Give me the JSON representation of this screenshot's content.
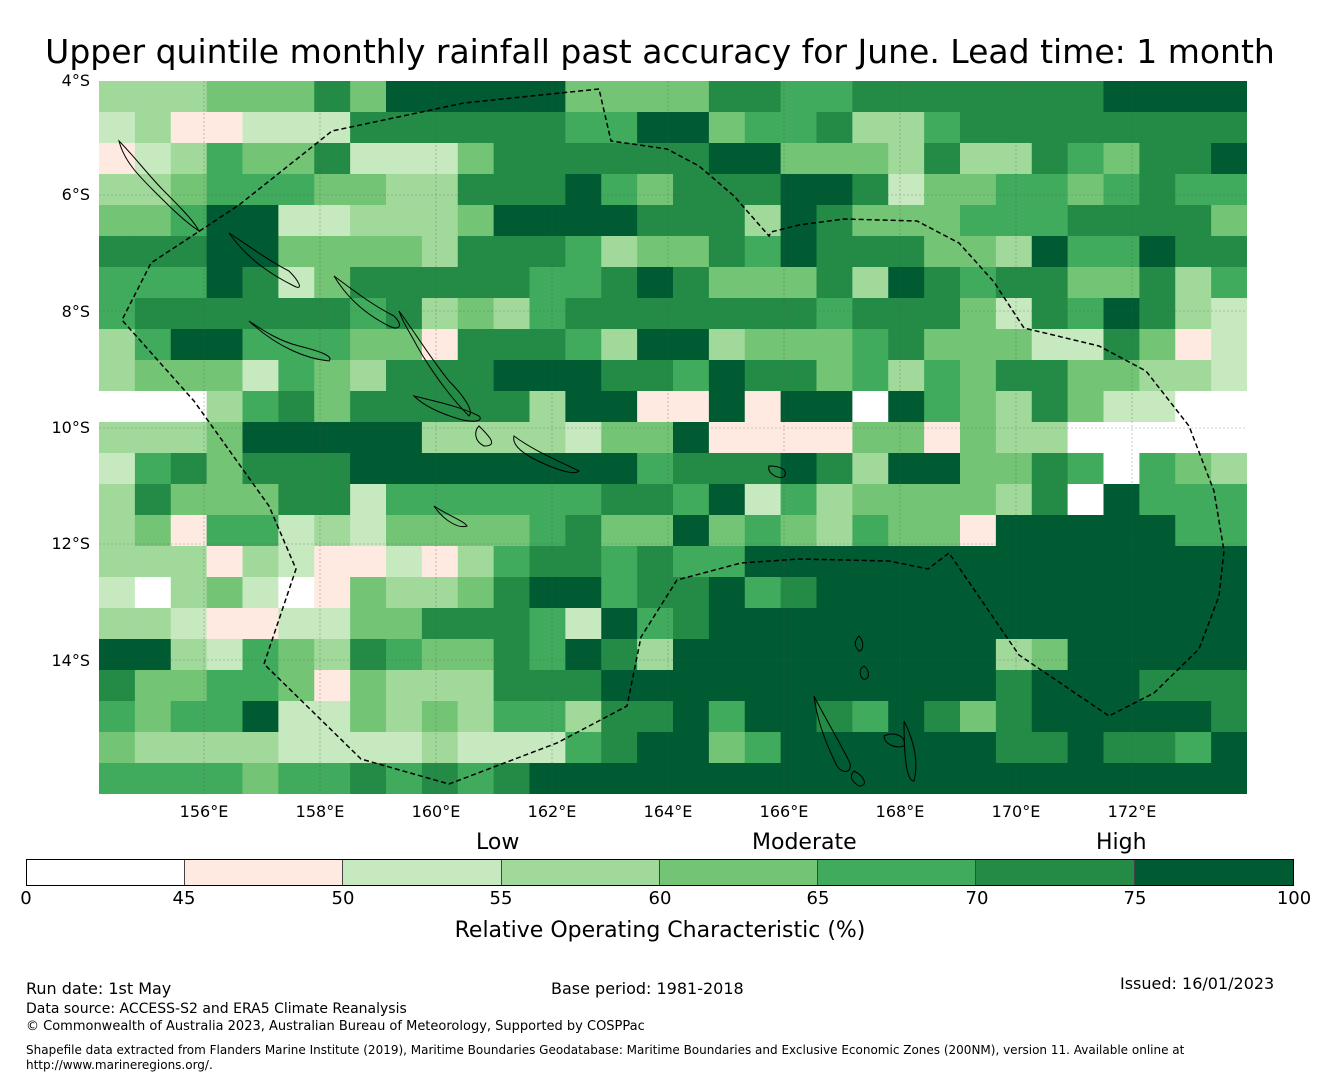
{
  "title": "Upper quintile monthly rainfall past accuracy for June. Lead time: 1 month",
  "map": {
    "lat_labels": [
      "4°S",
      "6°S",
      "8°S",
      "10°S",
      "12°S",
      "14°S"
    ],
    "lon_labels": [
      "156°E",
      "158°E",
      "160°E",
      "162°E",
      "164°E",
      "166°E",
      "168°E",
      "170°E",
      "172°E"
    ],
    "colors": [
      "#ffffff",
      "#feeae0",
      "#c7e9c0",
      "#a1d99b",
      "#74c476",
      "#41ab5d",
      "#238b45",
      "#005a32"
    ],
    "cells": [
      "33344464777774444665566666667777",
      "23112226666665577455633566666666",
      "12354462224666666774443633654667",
      "33455544336667546667762445545655",
      "44577223334777766637644455566664",
      "66677444436665344657666443755766",
      "55576246666655676444637656644635",
      "56666665634356666666566642657632",
      "35775554416665377344456444226412",
      "34442543666777665766453546644332",
      "00035646666637711717707543642200",
      "33347777733332447111144143300000",
      "25646667777777756667637744650543",
      "36444662555555665725344443607555",
      "34155232444456447454354417777755",
      "33313211213566565577777777777777",
      "20342014334677566756777777777777",
      "33211224466652756777777777777777",
      "77325436544657637777777773477777",
      "64455414333666777777777776777666",
      "54557224343553667577657646777776",
      "43333222232225677457777776676657",
      "55554556565677777777777777777777"
    ]
  },
  "colorbar": {
    "categories": [
      "Low",
      "Moderate",
      "High"
    ],
    "ticks": [
      "0",
      "45",
      "50",
      "55",
      "60",
      "65",
      "70",
      "75",
      "100"
    ],
    "label": "Relative Operating Characteristic (%)"
  },
  "footer": {
    "run_date": "Run date: 1st May",
    "base_period": "Base period: 1981-2018",
    "issued": "Issued: 16/01/2023",
    "data_source": "Data source: ACCESS-S2 and ERA5 Climate Reanalysis",
    "copyright": "© Commonwealth of Australia 2023, Australian Bureau of Meteorology, Supported by COSPPac",
    "shapefile_line1": "Shapefile data extracted from Flanders Marine Institute (2019), Maritime Boundaries Geodatabase: Maritime Boundaries and Exclusive Economic Zones (200NM), version 11. Available online at",
    "shapefile_line2": "http://www.marineregions.org/."
  }
}
